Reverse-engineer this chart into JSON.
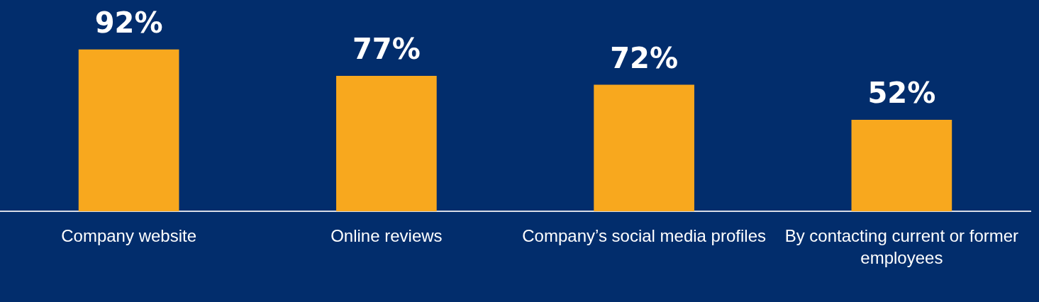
{
  "chart_data": {
    "type": "bar",
    "categories": [
      "Company website",
      "Online reviews",
      "Company’s social media profiles",
      "By contacting current or former employees"
    ],
    "values": [
      92,
      77,
      72,
      52
    ],
    "color": "#f8a81e",
    "data_labels": true,
    "value_labels": [
      "92%",
      "77%",
      "72%",
      "52%"
    ],
    "grid": false,
    "legend": false
  }
}
